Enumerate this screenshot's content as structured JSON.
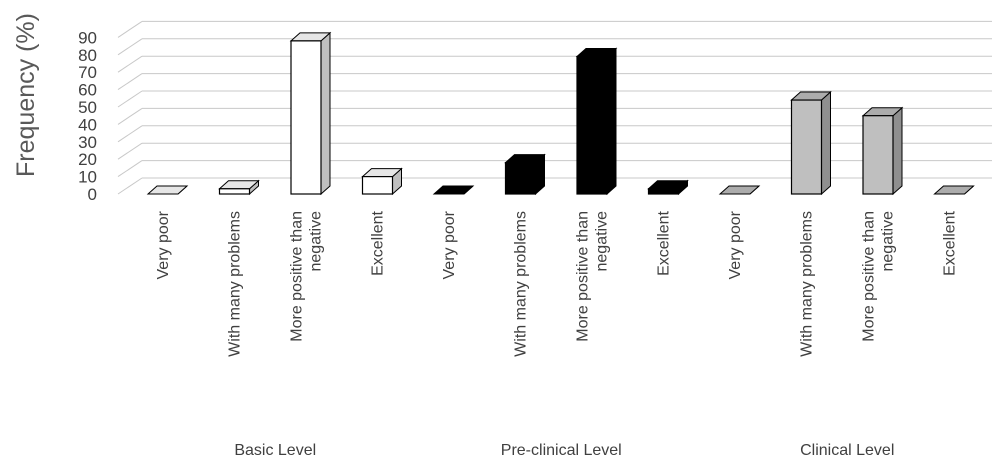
{
  "chart_data": {
    "type": "bar",
    "ylabel": "Frequency (%)",
    "ylim": [
      0,
      90
    ],
    "yticks": [
      0,
      10,
      20,
      30,
      40,
      50,
      60,
      70,
      80,
      90
    ],
    "grid": true,
    "groups": [
      {
        "name": "Basic Level",
        "color": "#ffffff",
        "categories": [
          "Very poor",
          "With many problems",
          "More positive than negative",
          "Excellent"
        ],
        "category_lines": [
          [
            "Very poor"
          ],
          [
            "With many problems"
          ],
          [
            "More positive than",
            "negative"
          ],
          [
            "Excellent"
          ]
        ],
        "values": [
          0,
          3,
          88,
          10
        ]
      },
      {
        "name": "Pre-clinical Level",
        "color": "#000000",
        "categories": [
          "Very poor",
          "With many problems",
          "More positive than negative",
          "Excellent"
        ],
        "category_lines": [
          [
            "Very poor"
          ],
          [
            "With many problems"
          ],
          [
            "More positive than",
            "negative"
          ],
          [
            "Excellent"
          ]
        ],
        "values": [
          0,
          18,
          79,
          3
        ]
      },
      {
        "name": "Clinical Level",
        "color": "#bfbfbf",
        "categories": [
          "Very poor",
          "With many problems",
          "More positive than negative",
          "Excellent"
        ],
        "category_lines": [
          [
            "Very poor"
          ],
          [
            "With many problems"
          ],
          [
            "More positive than",
            "negative"
          ],
          [
            "Excellent"
          ]
        ],
        "values": [
          0,
          54,
          45,
          0
        ]
      }
    ]
  }
}
